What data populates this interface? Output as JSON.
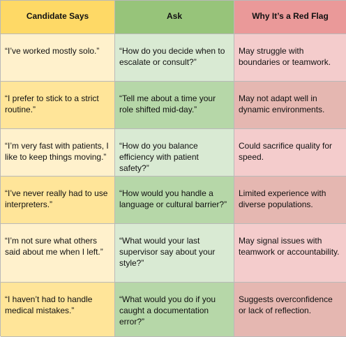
{
  "headers": {
    "candidate_says": "Candidate Says",
    "ask": "Ask",
    "red_flag": "Why It’s a Red Flag"
  },
  "rows": [
    {
      "says": "“I’ve worked mostly solo.”",
      "ask": "“How do you decide when to escalate or consult?”",
      "flag": "May struggle with boundaries or teamwork."
    },
    {
      "says": "“I prefer to stick to a strict routine.”",
      "ask": "“Tell me about a time your role shifted mid-day.”",
      "flag": "May not adapt well in dynamic environments."
    },
    {
      "says": "“I’m very fast with patients, I like to keep things moving.”",
      "ask": "“How do you balance efficiency with patient safety?”",
      "flag": "Could sacrifice quality for speed."
    },
    {
      "says": "“I’ve never really had to use interpreters.”",
      "ask": "“How would you handle a language or cultural barrier?”",
      "flag": "Limited experience with diverse populations."
    },
    {
      "says": "“I’m not sure what others said about me when I left.”",
      "ask": "“What would your last supervisor say about your style?”",
      "flag": "May signal issues with teamwork or accountability."
    },
    {
      "says": "“I haven’t had to handle medical mistakes.”",
      "ask": "“What would you do if you caught a documentation error?”",
      "flag": "Suggests overconfidence or lack of reflection."
    }
  ],
  "colors": {
    "header_col1": "#fed966",
    "header_col2": "#97c47a",
    "header_col3": "#ea9999",
    "row_light_col1": "#fff1cc",
    "row_dark_col1": "#ffe599",
    "row_light_col2": "#d9ead3",
    "row_dark_col2": "#b6d7a8",
    "row_light_col3": "#f4cccc",
    "row_dark_col3": "#e5b7b1"
  }
}
